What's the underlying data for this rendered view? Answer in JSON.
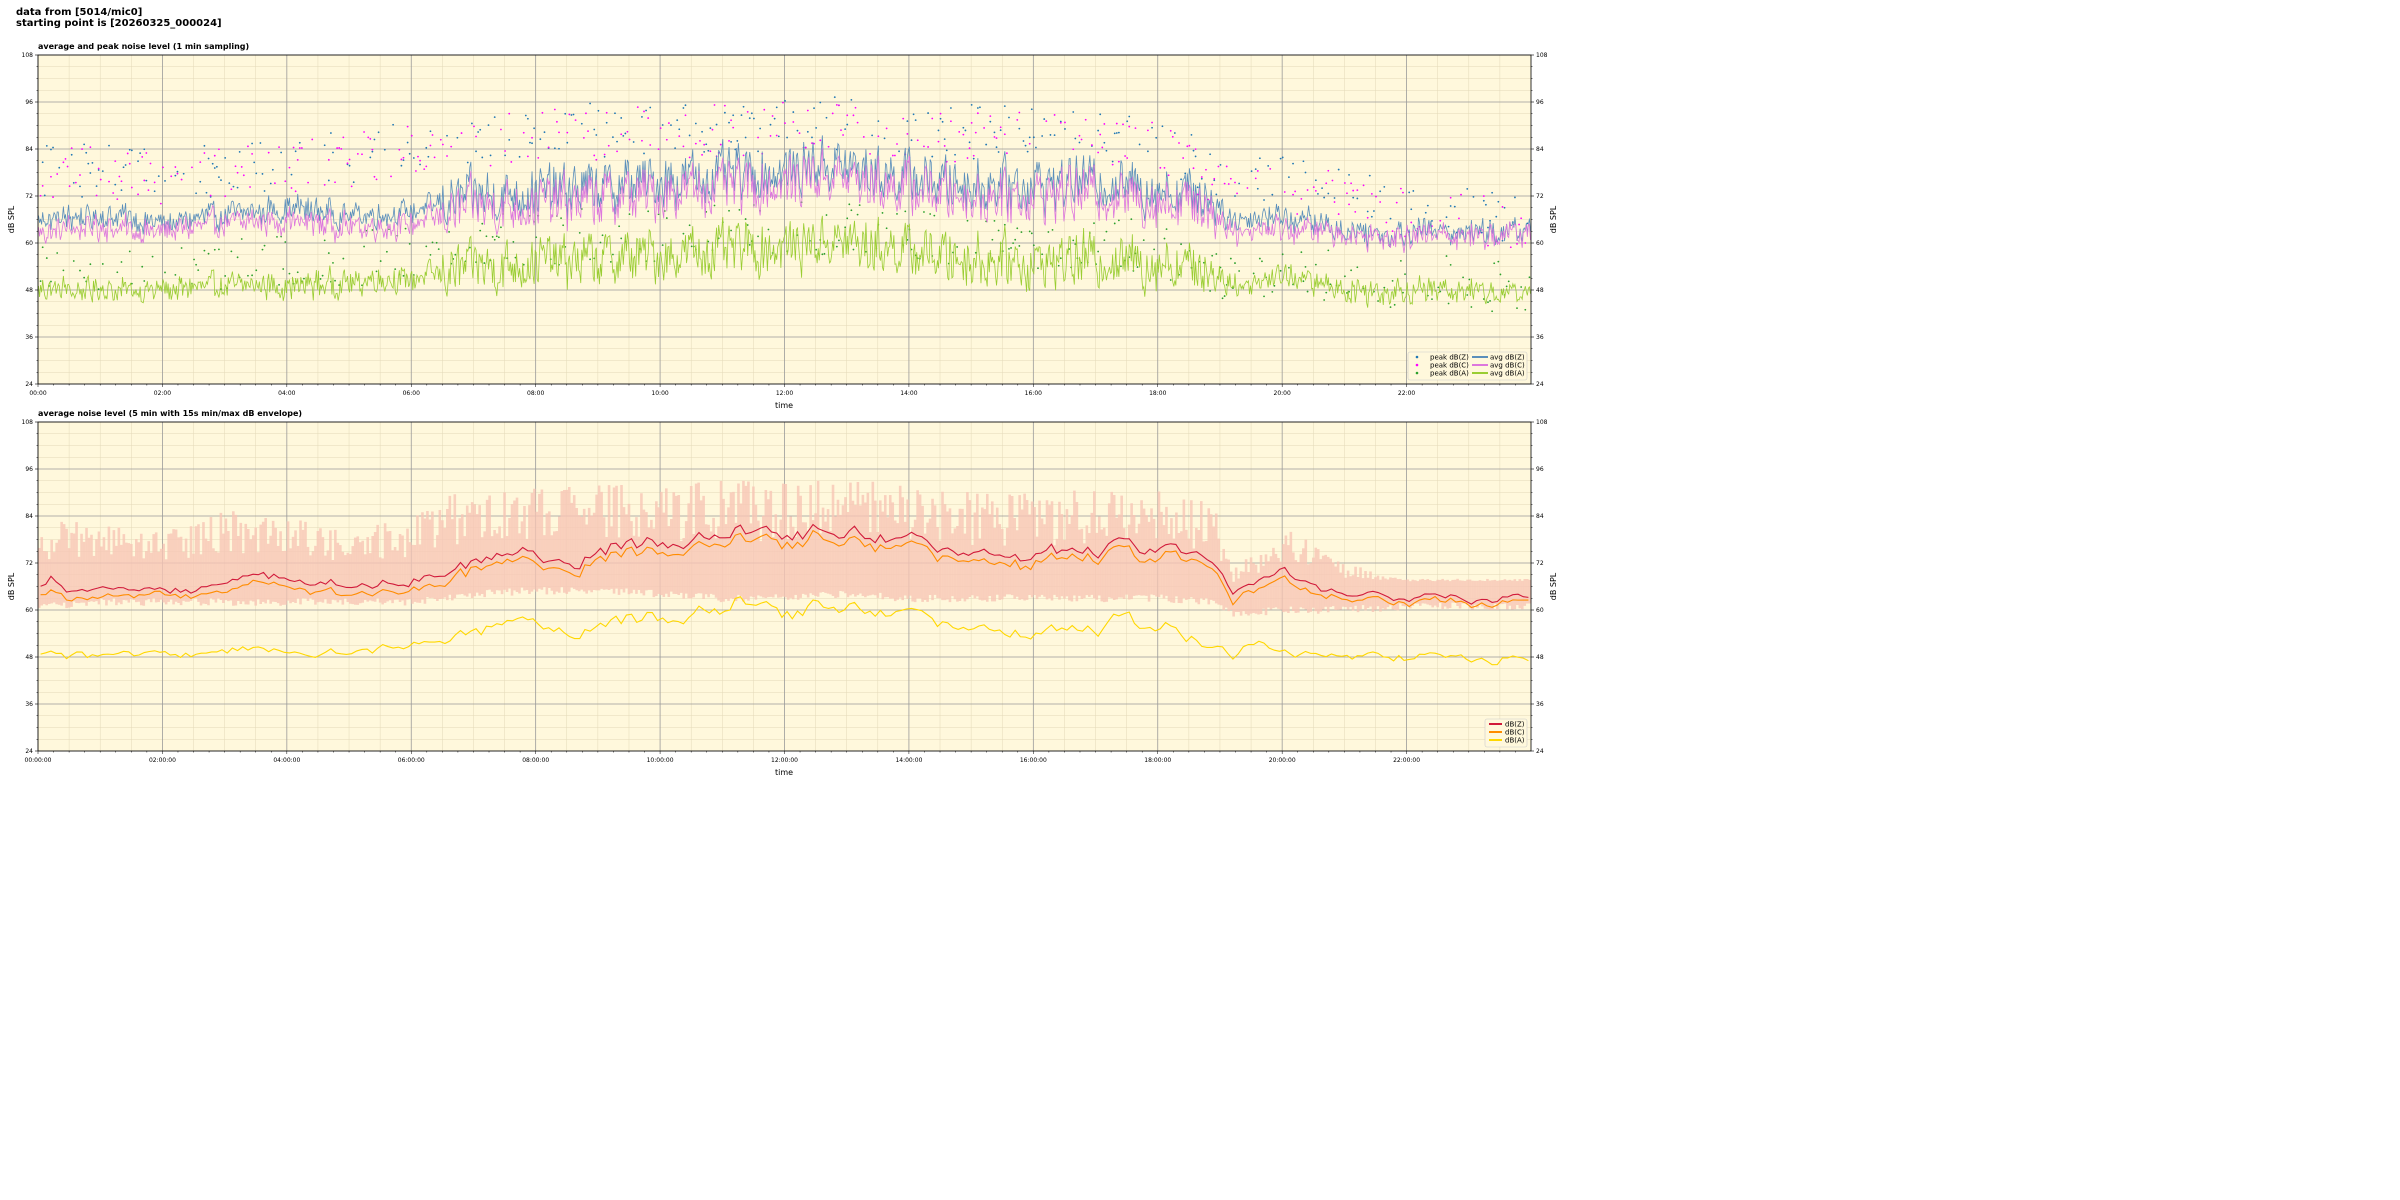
{
  "header": {
    "line1": "data from [5014/mic0]",
    "line2": "starting point is [20260325_000024]"
  },
  "chart_data": [
    {
      "type": "line",
      "title": "average and peak noise level (1 min sampling)",
      "xlabel": "time",
      "ylabel": "dB SPL",
      "xlim_hours": [
        0,
        24
      ],
      "ylim": [
        24,
        108
      ],
      "y_ticks": [
        24,
        36,
        48,
        60,
        72,
        84,
        96,
        108
      ],
      "x_tick_labels": [
        "00:00",
        "02:00",
        "04:00",
        "06:00",
        "08:00",
        "10:00",
        "12:00",
        "14:00",
        "16:00",
        "18:00",
        "20:00",
        "22:00"
      ],
      "grid": true,
      "legend_position": "lower-right",
      "background": "#fff8dc",
      "legend": [
        {
          "name": "peak dB(Z)",
          "kind": "marker",
          "color": "#1f77b4"
        },
        {
          "name": "peak dB(C)",
          "kind": "marker",
          "color": "#ff00ff"
        },
        {
          "name": "peak dB(A)",
          "kind": "marker",
          "color": "#2ca02c"
        },
        {
          "name": "avg dB(Z)",
          "kind": "line",
          "color": "#5b8fbb"
        },
        {
          "name": "avg dB(C)",
          "kind": "line",
          "color": "#dd77dd"
        },
        {
          "name": "avg dB(A)",
          "kind": "line",
          "color": "#9acd32"
        }
      ],
      "series": [
        {
          "name": "avg dB(Z)",
          "color": "#5b8fbb",
          "kind": "avg",
          "hours": [
            0,
            1,
            2,
            3,
            4,
            5,
            6,
            7,
            8,
            9,
            10,
            11,
            12,
            12.6,
            13,
            14,
            15,
            16,
            17,
            18,
            18.8,
            19.2,
            20,
            21,
            22,
            23,
            23.9
          ],
          "values": [
            66,
            67,
            65,
            67,
            69,
            67,
            68,
            72,
            73,
            74,
            76,
            77,
            78,
            81,
            79,
            77,
            75,
            75,
            76,
            74,
            73,
            66,
            67,
            63,
            63,
            63,
            63
          ]
        },
        {
          "name": "avg dB(C)",
          "color": "#dd77dd",
          "kind": "avg",
          "hours": [
            0,
            1,
            2,
            3,
            4,
            5,
            6,
            7,
            8,
            9,
            10,
            11,
            12,
            12.6,
            13,
            14,
            15,
            16,
            17,
            18,
            18.8,
            19.2,
            20,
            21,
            22,
            23,
            23.9
          ],
          "values": [
            63,
            64,
            63,
            65,
            66,
            64,
            65,
            69,
            70,
            71,
            73,
            74,
            75,
            78,
            76,
            74,
            72,
            72,
            73,
            71,
            70,
            63,
            64,
            62,
            62,
            62,
            62
          ]
        },
        {
          "name": "avg dB(A)",
          "color": "#9acd32",
          "kind": "avg",
          "hours": [
            0,
            1,
            2,
            3,
            4,
            5,
            6,
            7,
            8,
            9,
            10,
            11,
            12,
            12.6,
            13,
            14,
            15,
            16,
            17,
            18,
            18.8,
            19.2,
            20,
            21,
            22,
            23,
            23.9
          ],
          "values": [
            48,
            48,
            48,
            49,
            49,
            50,
            51,
            54,
            55,
            56,
            57,
            58,
            59,
            61,
            60,
            58,
            56,
            55,
            56,
            55,
            54,
            49,
            52,
            48,
            48,
            48,
            47
          ]
        },
        {
          "name": "peak dB(Z)",
          "color": "#1f77b4",
          "kind": "peak",
          "hours": [
            0,
            2,
            4,
            6,
            7,
            9,
            10,
            12,
            13,
            14,
            16,
            18,
            19,
            20,
            22,
            23.9
          ],
          "values": [
            79,
            78,
            80,
            84,
            87,
            89,
            89,
            90,
            91,
            89,
            88,
            87,
            76,
            76,
            68,
            66
          ]
        },
        {
          "name": "peak dB(C)",
          "color": "#ff00ff",
          "kind": "peak",
          "hours": [
            0,
            2,
            4,
            6,
            7,
            9,
            10,
            12,
            13,
            14,
            16,
            18,
            19,
            20,
            22,
            23.9
          ],
          "values": [
            78,
            77,
            79,
            83,
            86,
            88,
            88,
            89,
            90,
            88,
            87,
            86,
            75,
            75,
            67,
            65
          ]
        },
        {
          "name": "peak dB(A)",
          "color": "#2ca02c",
          "kind": "peak",
          "hours": [
            0,
            2,
            4,
            6,
            7,
            9,
            10,
            12,
            13,
            14,
            16,
            18,
            19,
            20,
            22,
            23.9
          ],
          "values": [
            53,
            54,
            55,
            57,
            60,
            62,
            62,
            64,
            64,
            62,
            60,
            59,
            51,
            53,
            50,
            49
          ]
        }
      ]
    },
    {
      "type": "area",
      "title": "average noise level (5 min with 15s min/max dB envelope)",
      "xlabel": "time",
      "ylabel": "dB SPL",
      "xlim_hours": [
        0,
        24
      ],
      "ylim": [
        24,
        108
      ],
      "y_ticks": [
        24,
        36,
        48,
        60,
        72,
        84,
        96,
        108
      ],
      "x_tick_labels": [
        "00:00:00",
        "02:00:00",
        "04:00:00",
        "06:00:00",
        "08:00:00",
        "10:00:00",
        "12:00:00",
        "14:00:00",
        "16:00:00",
        "18:00:00",
        "20:00:00",
        "22:00:00"
      ],
      "grid": true,
      "legend_position": "lower-right",
      "background": "#fff8dc",
      "legend": [
        {
          "name": "dB(Z)",
          "kind": "line",
          "color": "#d11a3a"
        },
        {
          "name": "dB(C)",
          "kind": "line",
          "color": "#ff8c00"
        },
        {
          "name": "dB(A)",
          "kind": "line",
          "color": "#ffd700"
        }
      ],
      "envelope": {
        "color": "#f7c5b5",
        "hours": [
          0,
          1,
          2,
          3,
          4,
          5,
          6,
          6.6,
          7,
          8,
          9,
          10,
          11,
          12,
          13,
          14,
          15,
          16,
          17,
          18,
          18.9,
          19.2,
          20,
          21,
          22,
          23,
          23.9
        ],
        "min": [
          61,
          62,
          62,
          62,
          62,
          62,
          62,
          63,
          64,
          65,
          65,
          64,
          63,
          63,
          64,
          63,
          63,
          63,
          63,
          63,
          62,
          59,
          60,
          60,
          61,
          61,
          61
        ],
        "max": [
          84,
          82,
          80,
          86,
          84,
          80,
          84,
          90,
          90,
          91,
          92,
          92,
          93,
          93,
          94,
          92,
          90,
          90,
          91,
          91,
          88,
          70,
          82,
          72,
          68,
          68,
          68
        ]
      },
      "series": [
        {
          "name": "dB(Z)",
          "color": "#d11a3a",
          "hours": [
            0,
            0.25,
            0.5,
            1,
            2,
            3,
            3.5,
            4,
            5,
            6,
            6.7,
            7,
            8,
            9,
            10,
            11,
            11.3,
            12,
            12.7,
            13,
            14,
            15,
            16,
            17,
            17.5,
            18,
            18.8,
            19.2,
            20,
            20.5,
            21,
            22,
            23,
            23.9
          ],
          "values": [
            65,
            69,
            64,
            65,
            64,
            66,
            68,
            68,
            66,
            67,
            70,
            72,
            72,
            75,
            77,
            77,
            80,
            78,
            82,
            79,
            77,
            74,
            74,
            75,
            77,
            74,
            76,
            64,
            70,
            66,
            64,
            63,
            63,
            63
          ]
        },
        {
          "name": "dB(C)",
          "color": "#ff8c00",
          "hours": [
            0,
            0.25,
            0.5,
            1,
            2,
            3,
            3.5,
            4,
            5,
            6,
            6.7,
            7,
            8,
            9,
            10,
            11,
            11.3,
            12,
            12.7,
            13,
            14,
            15,
            16,
            17,
            17.5,
            18,
            18.8,
            19.2,
            20,
            20.5,
            21,
            22,
            23,
            23.9
          ],
          "values": [
            63,
            66,
            62,
            63,
            63,
            64,
            66,
            66,
            64,
            65,
            68,
            70,
            70,
            73,
            75,
            75,
            78,
            76,
            80,
            77,
            75,
            72,
            72,
            73,
            75,
            72,
            74,
            62,
            68,
            64,
            63,
            62,
            62,
            62
          ]
        },
        {
          "name": "dB(A)",
          "color": "#ffd700",
          "hours": [
            0,
            0.25,
            0.5,
            1,
            2,
            3,
            4,
            5,
            6,
            6.7,
            7,
            8,
            9,
            10,
            11,
            11.3,
            12,
            12.7,
            13,
            14,
            15,
            16,
            17,
            17.5,
            18,
            18.8,
            19.2,
            19.6,
            20,
            21,
            22,
            23,
            23.9
          ],
          "values": [
            48,
            50,
            48,
            48,
            48,
            49,
            49,
            49,
            51,
            53,
            54,
            55,
            56,
            58,
            58,
            62,
            58,
            63,
            60,
            58,
            55,
            54,
            55,
            58,
            54,
            53,
            48,
            52,
            49,
            48,
            48,
            48,
            47
          ]
        }
      ]
    }
  ]
}
